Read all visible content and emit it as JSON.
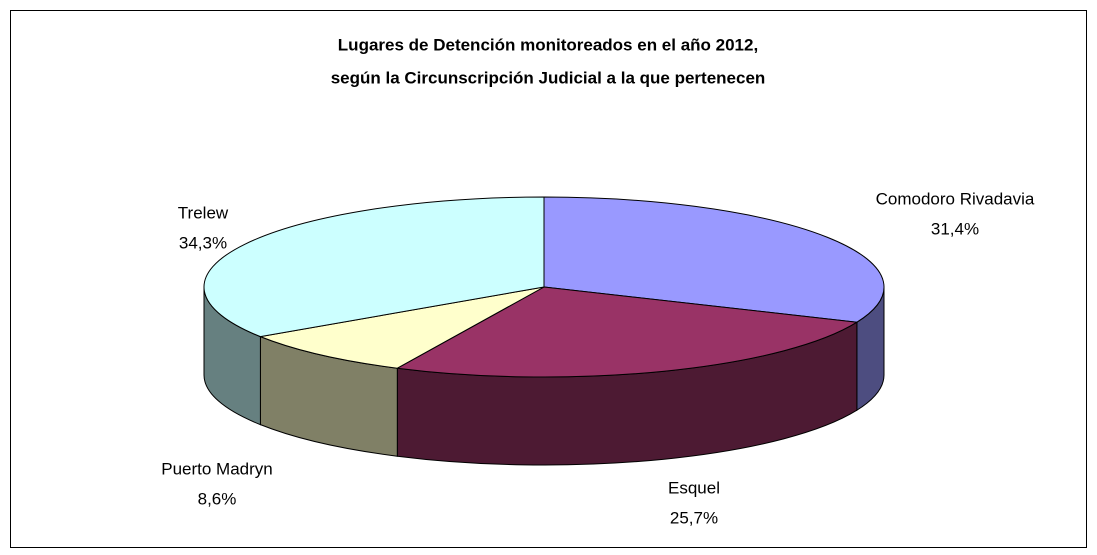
{
  "chart_data": {
    "type": "pie",
    "title": [
      "Lugares de Detención monitoreados en el año 2012,",
      "según la Circunscripción Judicial a la que pertenecen"
    ],
    "categories": [
      "Comodoro Rivadavia",
      "Esquel",
      "Puerto Madryn",
      "Trelew"
    ],
    "values": [
      31.4,
      25.7,
      8.6,
      34.3
    ],
    "value_labels": [
      "31,4%",
      "25,7%",
      "8,6%",
      "34,3%"
    ],
    "colors": [
      "#9999ff",
      "#993366",
      "#ffffcc",
      "#ccffff"
    ]
  }
}
